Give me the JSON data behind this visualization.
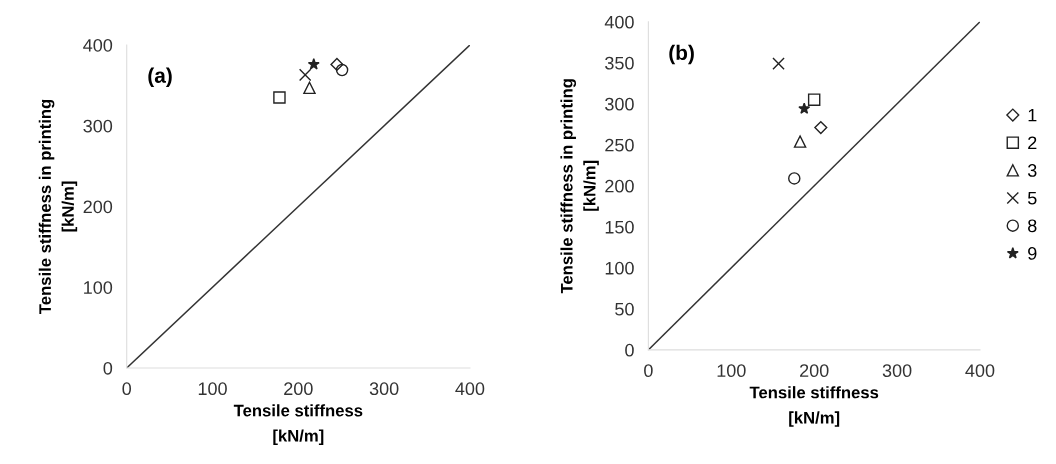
{
  "chart_data": [
    {
      "type": "scatter",
      "title": "(a)",
      "xlabel": "Tensile stiffness\n[kN/m]",
      "ylabel": "Tensile stiffness in printing\n[kN/m]",
      "xlim": [
        0,
        400
      ],
      "ylim": [
        0,
        400
      ],
      "xticks": [
        0,
        100,
        200,
        300,
        400
      ],
      "yticks": [
        0,
        100,
        200,
        300,
        400
      ],
      "grid": false,
      "legend": false,
      "series": [
        {
          "color": "#222222",
          "marker": "diamond",
          "x": [
            245
          ],
          "values": [
            376
          ]
        },
        {
          "color": "#222222",
          "marker": "square",
          "x": [
            178
          ],
          "values": [
            335
          ]
        },
        {
          "color": "#222222",
          "marker": "triangle",
          "x": [
            213
          ],
          "values": [
            347
          ]
        },
        {
          "color": "#222222",
          "marker": "cross",
          "x": [
            208
          ],
          "values": [
            363
          ]
        },
        {
          "color": "#222222",
          "marker": "circle",
          "x": [
            251
          ],
          "values": [
            369
          ]
        },
        {
          "color": "#222222",
          "marker": "star",
          "x": [
            218
          ],
          "values": [
            376
          ]
        },
        {
          "type": "line",
          "color": "#333333",
          "marker": "none",
          "x": [
            0,
            400
          ],
          "values": [
            0,
            400
          ]
        }
      ]
    },
    {
      "type": "scatter",
      "title": "(b)",
      "xlabel": "Tensile stiffness\n[kN/m]",
      "ylabel": "Tensile stiffness in printing\n[kN/m]",
      "xlim": [
        0,
        400
      ],
      "ylim": [
        0,
        400
      ],
      "xticks": [
        0,
        100,
        200,
        300,
        400
      ],
      "yticks": [
        0,
        50,
        100,
        150,
        200,
        250,
        300,
        350,
        400
      ],
      "grid": false,
      "legend": "right",
      "series": [
        {
          "name": "1",
          "color": "#222222",
          "marker": "diamond",
          "x": [
            208
          ],
          "values": [
            271
          ]
        },
        {
          "name": "2",
          "color": "#222222",
          "marker": "square",
          "x": [
            200
          ],
          "values": [
            305
          ]
        },
        {
          "name": "3",
          "color": "#222222",
          "marker": "triangle",
          "x": [
            183
          ],
          "values": [
            254
          ]
        },
        {
          "name": "5",
          "color": "#222222",
          "marker": "cross",
          "x": [
            157
          ],
          "values": [
            349
          ]
        },
        {
          "name": "8",
          "color": "#222222",
          "marker": "circle",
          "x": [
            176
          ],
          "values": [
            209
          ]
        },
        {
          "name": "9",
          "color": "#222222",
          "marker": "star",
          "x": [
            188
          ],
          "values": [
            294
          ]
        },
        {
          "type": "line",
          "color": "#333333",
          "marker": "none",
          "x": [
            0,
            400
          ],
          "values": [
            0,
            400
          ]
        }
      ]
    }
  ]
}
